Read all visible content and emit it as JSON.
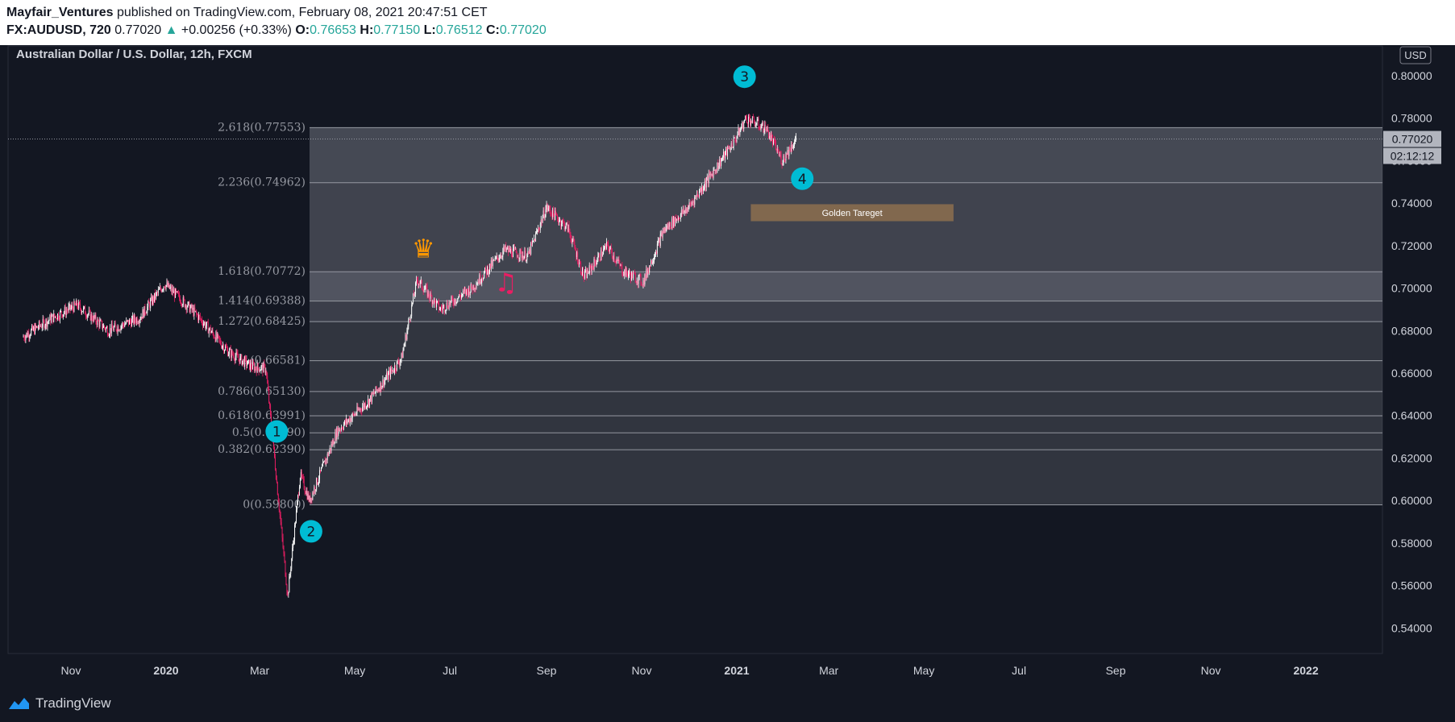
{
  "header": {
    "author": "Mayfair_Ventures",
    "published_text": "published on TradingView.com, February 08, 2021 20:47:51 CET",
    "symbol": "FX:AUDUSD, 720",
    "last": "0.77020",
    "change": "+0.00256 (+0.33%)",
    "o_label": "O:",
    "o": "0.76653",
    "h_label": "H:",
    "h": "0.77150",
    "l_label": "L:",
    "l": "0.76512",
    "c_label": "C:",
    "c": "0.77020"
  },
  "footer": {
    "brand": "TradingView"
  },
  "colors": {
    "background": "#131722",
    "up": "#ffffff",
    "down": "#e91e63",
    "badge": "#00bcd4",
    "fib_zone": "#787b86",
    "target": "#8d6e4f",
    "crown": "#ff9800",
    "music": "#e91e63"
  },
  "chart_data": {
    "type": "candlestick",
    "title": "Australian Dollar / U.S. Dollar, 12h, FXCM",
    "currency_badge": "USD",
    "current_price_label": "0.77020",
    "countdown_label": "02:12:12",
    "ylim": [
      0.528,
      0.814
    ],
    "y_ticks": [
      "0.80000",
      "0.78000",
      "0.76000",
      "0.74000",
      "0.72000",
      "0.70000",
      "0.68000",
      "0.66000",
      "0.64000",
      "0.62000",
      "0.60000",
      "0.58000",
      "0.56000",
      "0.54000"
    ],
    "x_ticks": [
      "Nov",
      "2020",
      "Mar",
      "May",
      "Jul",
      "Sep",
      "Nov",
      "2021",
      "Mar",
      "May",
      "Jul",
      "Sep",
      "Nov",
      "2022"
    ],
    "price_path": [
      [
        "2019-10-01",
        0.677
      ],
      [
        "2019-10-20",
        0.686
      ],
      [
        "2019-11-05",
        0.692
      ],
      [
        "2019-11-25",
        0.68
      ],
      [
        "2019-12-15",
        0.686
      ],
      [
        "2019-12-31",
        0.702
      ],
      [
        "2020-01-20",
        0.688
      ],
      [
        "2020-02-10",
        0.67
      ],
      [
        "2020-02-25",
        0.663
      ],
      [
        "2020-03-05",
        0.662
      ],
      [
        "2020-03-19",
        0.555
      ],
      [
        "2020-03-27",
        0.612
      ],
      [
        "2020-04-02",
        0.6
      ],
      [
        "2020-04-20",
        0.633
      ],
      [
        "2020-05-10",
        0.647
      ],
      [
        "2020-05-31",
        0.667
      ],
      [
        "2020-06-10",
        0.704
      ],
      [
        "2020-06-25",
        0.69
      ],
      [
        "2020-07-15",
        0.7
      ],
      [
        "2020-08-05",
        0.718
      ],
      [
        "2020-08-20",
        0.715
      ],
      [
        "2020-09-01",
        0.738
      ],
      [
        "2020-09-15",
        0.728
      ],
      [
        "2020-09-25",
        0.705
      ],
      [
        "2020-10-10",
        0.72
      ],
      [
        "2020-10-20",
        0.708
      ],
      [
        "2020-11-02",
        0.703
      ],
      [
        "2020-11-15",
        0.727
      ],
      [
        "2020-12-01",
        0.738
      ],
      [
        "2020-12-20",
        0.758
      ],
      [
        "2020-12-31",
        0.77
      ],
      [
        "2021-01-07",
        0.78
      ],
      [
        "2021-01-20",
        0.775
      ],
      [
        "2021-01-30",
        0.76
      ],
      [
        "2021-02-08",
        0.7702
      ]
    ],
    "fib_levels": [
      {
        "label": "2.618(0.77553)",
        "value": 0.77553
      },
      {
        "label": "2.236(0.74962)",
        "value": 0.74962
      },
      {
        "label": "1.618(0.70772)",
        "value": 0.70772
      },
      {
        "label": "1.414(0.69388)",
        "value": 0.69388
      },
      {
        "label": "1.272(0.68425)",
        "value": 0.68425
      },
      {
        "label": "1(0.66581)",
        "value": 0.66581
      },
      {
        "label": "0.786(0.65130)",
        "value": 0.6513
      },
      {
        "label": "0.618(0.63991)",
        "value": 0.63991
      },
      {
        "label": "0.5(0.63190)",
        "value": 0.6319
      },
      {
        "label": "0.382(0.62390)",
        "value": 0.6239
      },
      {
        "label": "0(0.59800)",
        "value": 0.598
      }
    ],
    "wave_labels": [
      {
        "text": "1",
        "date": "2020-03-12",
        "price": 0.6325
      },
      {
        "text": "2",
        "date": "2020-04-03",
        "price": 0.5855
      },
      {
        "text": "3",
        "date": "2021-01-06",
        "price": 0.7995
      },
      {
        "text": "4",
        "date": "2021-02-12",
        "price": 0.7515
      }
    ],
    "target_box": {
      "label": "Golden Tareget",
      "from": "2021-01-10",
      "to": "2021-05-20",
      "top": 0.7395,
      "bottom": 0.7315
    },
    "annotations": [
      {
        "name": "crown",
        "glyph": "♛",
        "date": "2020-06-14",
        "price": 0.7145
      },
      {
        "name": "music",
        "glyph": "♫",
        "date": "2020-08-06",
        "price": 0.6985
      }
    ]
  }
}
